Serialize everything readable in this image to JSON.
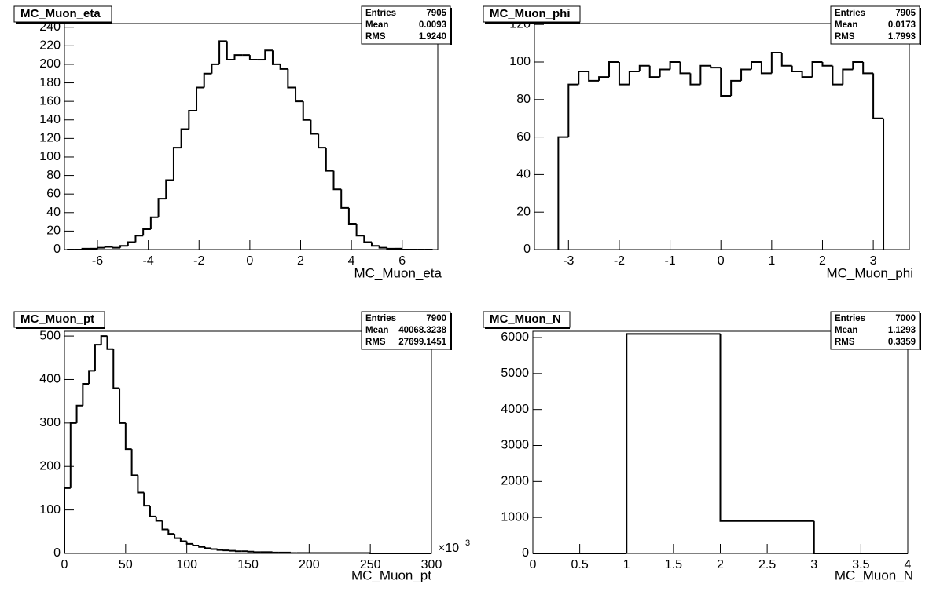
{
  "chart_data": [
    {
      "type": "histogram",
      "title": "MC_Muon_eta",
      "x_label": "MC_Muon_eta",
      "color": "#000000",
      "stats": [
        {
          "label": "Entries",
          "value": "7905"
        },
        {
          "label": "Mean",
          "value": "0.0093"
        },
        {
          "label": "RMS",
          "value": "1.9240"
        }
      ],
      "bins": [
        -7.2,
        -6.9,
        -6.6,
        -6.3,
        -6.0,
        -5.7,
        -5.4,
        -5.1,
        -4.8,
        -4.5,
        -4.2,
        -3.9,
        -3.6,
        -3.3,
        -3.0,
        -2.7,
        -2.4,
        -2.1,
        -1.8,
        -1.5,
        -1.2,
        -0.9,
        -0.6,
        -0.3,
        0,
        0.3,
        0.6,
        0.9,
        1.2,
        1.5,
        1.8,
        2.1,
        2.4,
        2.7,
        3.0,
        3.3,
        3.6,
        3.9,
        4.2,
        4.5,
        4.8,
        5.1,
        5.4,
        5.7,
        6.0,
        6.3,
        6.6,
        6.9,
        7.2
      ],
      "values": [
        0,
        0,
        1,
        1,
        2,
        3,
        2,
        4,
        8,
        15,
        22,
        35,
        55,
        75,
        110,
        130,
        150,
        175,
        190,
        200,
        225,
        205,
        210,
        210,
        205,
        205,
        215,
        200,
        195,
        175,
        160,
        140,
        125,
        110,
        85,
        65,
        45,
        28,
        15,
        8,
        4,
        2,
        1,
        1,
        0,
        0,
        0,
        0
      ],
      "xlim": [
        -7.3,
        7.4
      ],
      "ylim": [
        0,
        244
      ],
      "xticks": [
        -6,
        -4,
        -2,
        0,
        2,
        4,
        6
      ],
      "yticks": [
        0,
        20,
        40,
        60,
        80,
        100,
        120,
        140,
        160,
        180,
        200,
        220,
        240
      ]
    },
    {
      "type": "histogram",
      "title": "MC_Muon_phi",
      "x_label": "MC_Muon_phi",
      "color": "#000000",
      "stats": [
        {
          "label": "Entries",
          "value": "7905"
        },
        {
          "label": "Mean",
          "value": "0.0173"
        },
        {
          "label": "RMS",
          "value": "1.7993"
        }
      ],
      "bins": [
        -3.2,
        -3.0,
        -2.8,
        -2.6,
        -2.4,
        -2.2,
        -2.0,
        -1.8,
        -1.6,
        -1.4,
        -1.2,
        -1.0,
        -0.8,
        -0.6,
        -0.4,
        -0.2,
        0,
        0.2,
        0.4,
        0.6,
        0.8,
        1.0,
        1.2,
        1.4,
        1.6,
        1.8,
        2.0,
        2.2,
        2.4,
        2.6,
        2.8,
        3.0,
        3.2
      ],
      "values": [
        60,
        88,
        95,
        90,
        92,
        100,
        88,
        95,
        98,
        92,
        96,
        100,
        94,
        88,
        98,
        97,
        82,
        90,
        96,
        100,
        94,
        105,
        98,
        95,
        92,
        100,
        98,
        88,
        96,
        100,
        94,
        70
      ],
      "xlim": [
        -3.67,
        3.71
      ],
      "ylim": [
        0,
        120.5
      ],
      "xticks": [
        -3,
        -2,
        -1,
        0,
        1,
        2,
        3
      ],
      "yticks": [
        0,
        20,
        40,
        60,
        80,
        100,
        120
      ]
    },
    {
      "type": "histogram",
      "title": "MC_Muon_pt",
      "x_label": "MC_Muon_pt",
      "color": "#000000",
      "x_multiplier": "×10",
      "x_multiplier_exponent": "3",
      "stats": [
        {
          "label": "Entries",
          "value": "7900"
        },
        {
          "label": "Mean",
          "value": "40068.3238"
        },
        {
          "label": "RMS",
          "value": "27699.1451"
        }
      ],
      "bins": [
        0,
        5,
        10,
        15,
        20,
        25,
        30,
        35,
        40,
        45,
        50,
        55,
        60,
        65,
        70,
        75,
        80,
        85,
        90,
        95,
        100,
        105,
        110,
        115,
        120,
        125,
        130,
        135,
        140,
        145,
        150,
        155,
        160,
        165,
        170,
        175,
        180,
        185,
        190,
        195,
        200,
        250,
        300
      ],
      "values": [
        150,
        300,
        340,
        390,
        420,
        480,
        500,
        470,
        380,
        300,
        240,
        180,
        140,
        110,
        85,
        75,
        55,
        45,
        35,
        28,
        22,
        18,
        15,
        12,
        10,
        8,
        7,
        6,
        5,
        5,
        4,
        3,
        3,
        3,
        2,
        2,
        2,
        1,
        1,
        1,
        1,
        0
      ],
      "xlim": [
        0,
        300
      ],
      "ylim": [
        0,
        511
      ],
      "xticks": [
        0,
        50,
        100,
        150,
        200,
        250,
        300
      ],
      "yticks": [
        0,
        100,
        200,
        300,
        400,
        500
      ]
    },
    {
      "type": "histogram",
      "title": "MC_Muon_N",
      "x_label": "MC_Muon_N",
      "color": "#000000",
      "stats": [
        {
          "label": "Entries",
          "value": "7000"
        },
        {
          "label": "Mean",
          "value": "1.1293"
        },
        {
          "label": "RMS",
          "value": "0.3359"
        }
      ],
      "bins": [
        0,
        1,
        2,
        3,
        4
      ],
      "values": [
        0,
        6100,
        900,
        0
      ],
      "xlim": [
        0,
        4
      ],
      "ylim": [
        0,
        6175
      ],
      "xticks": [
        0,
        0.5,
        1,
        1.5,
        2,
        2.5,
        3,
        3.5,
        4
      ],
      "yticks": [
        0,
        1000,
        2000,
        3000,
        4000,
        5000,
        6000
      ]
    }
  ]
}
